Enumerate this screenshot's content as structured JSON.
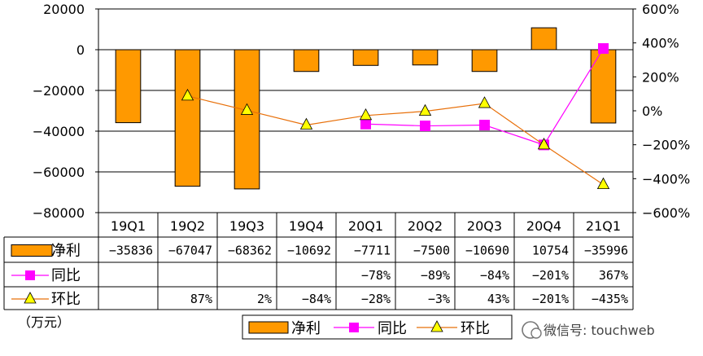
{
  "unit_label": "（万元）",
  "watermark": "微信号: touchweb",
  "chart_data": {
    "type": "bar",
    "categories": [
      "19Q1",
      "19Q2",
      "19Q3",
      "19Q4",
      "20Q1",
      "20Q2",
      "20Q3",
      "20Q4",
      "21Q1"
    ],
    "series": [
      {
        "name": "净利",
        "kind": "bar",
        "axis": "left",
        "color": "#FF9900",
        "values": [
          -35836,
          -67047,
          -68362,
          -10692,
          -7711,
          -7500,
          -10690,
          10754,
          -35996
        ],
        "table_labels": [
          "-35836",
          "-67047",
          "-68362",
          "-10692",
          "-7711",
          "-7500",
          "-10690",
          "10754",
          "-35996"
        ]
      },
      {
        "name": "同比",
        "kind": "line",
        "axis": "right",
        "color": "#FF00FF",
        "marker": "square",
        "values": [
          null,
          null,
          null,
          null,
          -78,
          -89,
          -84,
          -201,
          367
        ],
        "table_labels": [
          "",
          "",
          "",
          "",
          "-78%",
          "-89%",
          "-84%",
          "-201%",
          "367%"
        ]
      },
      {
        "name": "环比",
        "kind": "line",
        "axis": "right",
        "color": "#E8700A",
        "marker": "triangle",
        "values": [
          null,
          87,
          2,
          -84,
          -28,
          -3,
          43,
          -201,
          -435
        ],
        "table_labels": [
          "",
          "87%",
          "2%",
          "-84%",
          "-28%",
          "-3%",
          "43%",
          "-201%",
          "-435%"
        ]
      }
    ],
    "left_axis": {
      "ylim": [
        -80000,
        20000
      ],
      "ticks": [
        20000,
        0,
        -20000,
        -40000,
        -60000,
        -80000
      ],
      "tick_labels": [
        "20000",
        "0",
        "-20000",
        "-40000",
        "-60000",
        "-80000"
      ]
    },
    "right_axis": {
      "ylim": [
        -600,
        600
      ],
      "ticks": [
        600,
        400,
        200,
        0,
        -200,
        -400,
        -600
      ],
      "tick_labels": [
        "600%",
        "400%",
        "200%",
        "0%",
        "-200%",
        "-400%",
        "-600%"
      ]
    },
    "grid": true,
    "legend": {
      "placement": "bottom-center",
      "entries": [
        "净利",
        "同比",
        "环比"
      ]
    }
  }
}
